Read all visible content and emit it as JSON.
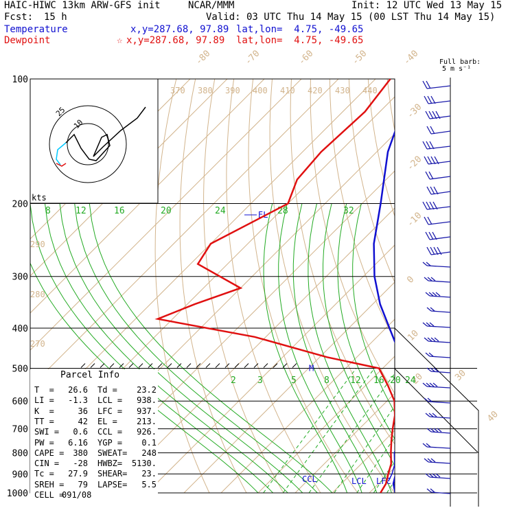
{
  "header": {
    "model": "HAIC-HIWC 13km ARW-GFS init",
    "center": "NCAR/MMM",
    "init": "Init: 12 UTC Wed 13 May 15",
    "fcst_label": "Fcst:",
    "fcst_value": "15 h",
    "valid": "Valid: 03 UTC Thu 14 May 15 (00 LST Thu 14 May 15)"
  },
  "legend": {
    "temperature_label": "Temperature",
    "temperature_coords": "x,y=287.68, 97.89",
    "temperature_latlon": "lat,lon=  4.75, -49.65",
    "dewpoint_label": "Dewpoint",
    "dewpoint_coords": "x,y=287.68, 97.89",
    "dewpoint_latlon": "lat,lon=  4.75, -49.65",
    "dewpoint_marker": "☆",
    "temperature_color": "#1010d0",
    "dewpoint_color": "#e01010"
  },
  "parcel_info": {
    "title": "Parcel Info",
    "rows": [
      [
        "T  =",
        "26.6",
        "Td =",
        "23.2"
      ],
      [
        "LI =",
        "-1.3",
        "LCL =",
        "938."
      ],
      [
        "K  =",
        "36",
        "LFC =",
        "937."
      ],
      [
        "TT =",
        "42",
        "EL =",
        "213."
      ],
      [
        "SWI =",
        "0.6",
        "CCL =",
        "926."
      ],
      [
        "PW =",
        "6.16",
        "YGP =",
        "0.1"
      ],
      [
        "CAPE =",
        "380",
        "SWEAT=",
        "248"
      ],
      [
        "CIN =",
        "-28",
        "HWBZ=",
        "5130."
      ],
      [
        "Tc =",
        "27.9",
        "SHEAR=",
        "23."
      ],
      [
        "SREH =",
        "79",
        "LAPSE=",
        "5.5"
      ],
      [
        "CELL =",
        "091/08",
        "",
        ""
      ]
    ]
  },
  "barb_key": {
    "line1": "Full barb:",
    "line2": "5 m s⁻¹"
  },
  "hodograph": {
    "unit": "kts",
    "ring_labels": [
      "10",
      "25"
    ]
  },
  "chart_data": {
    "type": "line",
    "title": "",
    "pressure_levels": [
      100,
      200,
      300,
      400,
      500,
      600,
      700,
      800,
      900,
      1000
    ],
    "pressure_tick_labels": [
      "100",
      "200",
      "300",
      "400",
      "500",
      "600",
      "700",
      "800",
      "900",
      "1000"
    ],
    "isotherm_labels": [
      "-80",
      "-70",
      "-60",
      "-50",
      "-40",
      "-30",
      "-20",
      "-10",
      "0",
      "10",
      "20",
      "30",
      "40"
    ],
    "dry_adiabat_labels_upper": [
      "370",
      "380",
      "390",
      "400",
      "410",
      "420",
      "430",
      "440"
    ],
    "dry_adiabat_labels_left": [
      "290",
      "280",
      "270"
    ],
    "mixing_ratio_labels_upper": [
      "8",
      "12",
      "16",
      "20",
      "24",
      "28",
      "32"
    ],
    "mixing_ratio_labels_lower": [
      "2",
      "3",
      "5",
      "8",
      "12",
      "16",
      "20",
      "24"
    ],
    "levels_marked": [
      {
        "name": "EL",
        "p": 213
      },
      {
        "name": "M",
        "p": 500
      },
      {
        "name": "CCL",
        "p": 926
      },
      {
        "name": "LCL",
        "p": 938
      },
      {
        "name": "LFC",
        "p": 937
      }
    ],
    "series": [
      {
        "name": "Temperature",
        "points": [
          [
            100,
            -79
          ],
          [
            120,
            -74
          ],
          [
            150,
            -67
          ],
          [
            200,
            -55
          ],
          [
            250,
            -46
          ],
          [
            300,
            -37
          ],
          [
            350,
            -28
          ],
          [
            400,
            -19
          ],
          [
            450,
            -11
          ],
          [
            500,
            -5
          ],
          [
            550,
            0
          ],
          [
            600,
            4
          ],
          [
            650,
            8
          ],
          [
            700,
            11
          ],
          [
            750,
            14
          ],
          [
            800,
            16
          ],
          [
            850,
            19
          ],
          [
            900,
            22
          ],
          [
            950,
            24
          ],
          [
            1000,
            27
          ]
        ]
      },
      {
        "name": "Dewpoint",
        "points": [
          [
            100,
            -86
          ],
          [
            120,
            -84
          ],
          [
            150,
            -85
          ],
          [
            175,
            -84
          ],
          [
            200,
            -80
          ],
          [
            250,
            -90
          ],
          [
            280,
            -88
          ],
          [
            320,
            -70
          ],
          [
            350,
            -78
          ],
          [
            380,
            -84
          ],
          [
            420,
            -53
          ],
          [
            470,
            -28
          ],
          [
            500,
            -11
          ],
          [
            550,
            -4
          ],
          [
            600,
            2
          ],
          [
            650,
            6
          ],
          [
            700,
            9
          ],
          [
            750,
            12
          ],
          [
            800,
            15
          ],
          [
            850,
            18
          ],
          [
            900,
            20
          ],
          [
            950,
            22
          ],
          [
            1000,
            23
          ]
        ]
      },
      {
        "name": "Parcel",
        "points": [
          [
            938,
            22
          ],
          [
            900,
            21
          ],
          [
            850,
            19
          ],
          [
            800,
            17
          ],
          [
            700,
            13
          ],
          [
            600,
            7
          ],
          [
            500,
            -1
          ],
          [
            450,
            -6
          ],
          [
            400,
            -11
          ],
          [
            350,
            -18
          ],
          [
            300,
            -26
          ],
          [
            250,
            -36
          ],
          [
            213,
            -45
          ]
        ]
      }
    ],
    "wind_barbs": {
      "levels": 28,
      "units": "m/s"
    }
  }
}
